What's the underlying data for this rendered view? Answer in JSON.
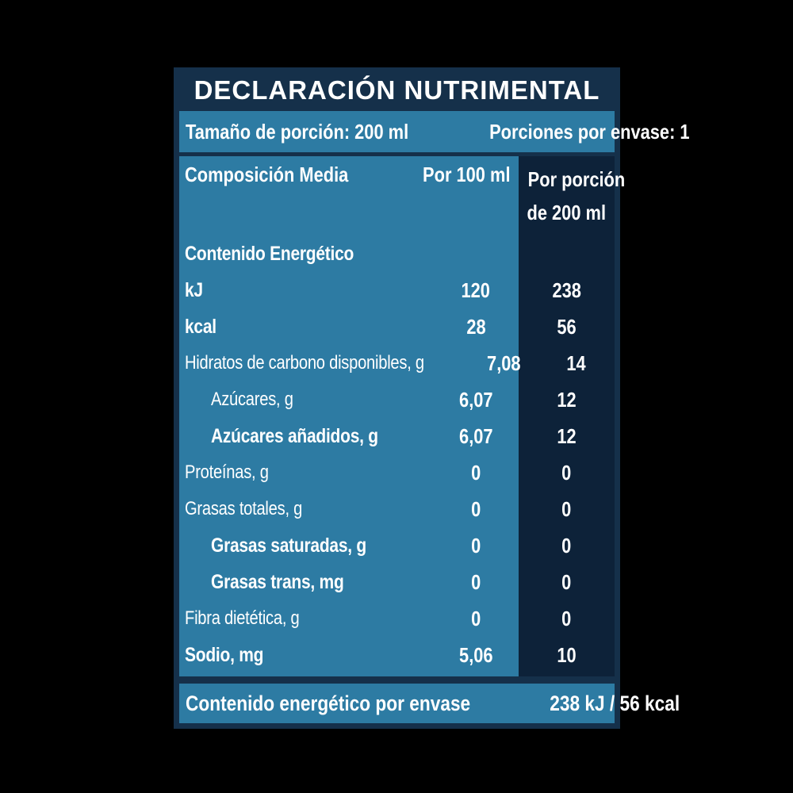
{
  "label": {
    "title": "DECLARACIÓN NUTRIMENTAL",
    "serving": {
      "size": "Tamaño de porción: 200 ml",
      "per_package": "Porciones por envase: 1"
    },
    "table": {
      "header": {
        "composition": "Composición Media",
        "per_100": "Por 100 ml",
        "per_portion_line1": "Por porción",
        "per_portion_line2": "de 200 ml"
      },
      "rows": [
        {
          "name": "Contenido Energético",
          "per100": "",
          "perportion": "",
          "bold": true,
          "indent": false
        },
        {
          "name": "kJ",
          "per100": "120",
          "perportion": "238",
          "bold": true,
          "indent": false
        },
        {
          "name": "kcal",
          "per100": "28",
          "perportion": "56",
          "bold": true,
          "indent": false
        },
        {
          "name": "Hidratos de carbono disponibles, g",
          "per100": "7,08",
          "perportion": "14",
          "bold": false,
          "indent": false
        },
        {
          "name": "Azúcares, g",
          "per100": "6,07",
          "perportion": "12",
          "bold": false,
          "indent": true
        },
        {
          "name": "Azúcares añadidos, g",
          "per100": "6,07",
          "perportion": "12",
          "bold": true,
          "indent": true
        },
        {
          "name": "Proteínas, g",
          "per100": "0",
          "perportion": "0",
          "bold": false,
          "indent": false
        },
        {
          "name": "Grasas totales, g",
          "per100": "0",
          "perportion": "0",
          "bold": false,
          "indent": false
        },
        {
          "name": "Grasas saturadas, g",
          "per100": "0",
          "perportion": "0",
          "bold": true,
          "indent": true
        },
        {
          "name": "Grasas trans, mg",
          "per100": "0",
          "perportion": "0",
          "bold": true,
          "indent": true
        },
        {
          "name": "Fibra dietética, g",
          "per100": "0",
          "perportion": "0",
          "bold": false,
          "indent": false
        },
        {
          "name": "Sodio, mg",
          "per100": "5,06",
          "perportion": "10",
          "bold": true,
          "indent": false
        }
      ]
    },
    "footer": {
      "label": "Contenido energético por envase",
      "value": "238 kJ / 56 kcal"
    },
    "colors": {
      "background": "#000000",
      "navy": "#15304a",
      "dark_navy_column": "#0d2239",
      "light_blue": "#2d7ba3",
      "text": "#ffffff"
    }
  }
}
